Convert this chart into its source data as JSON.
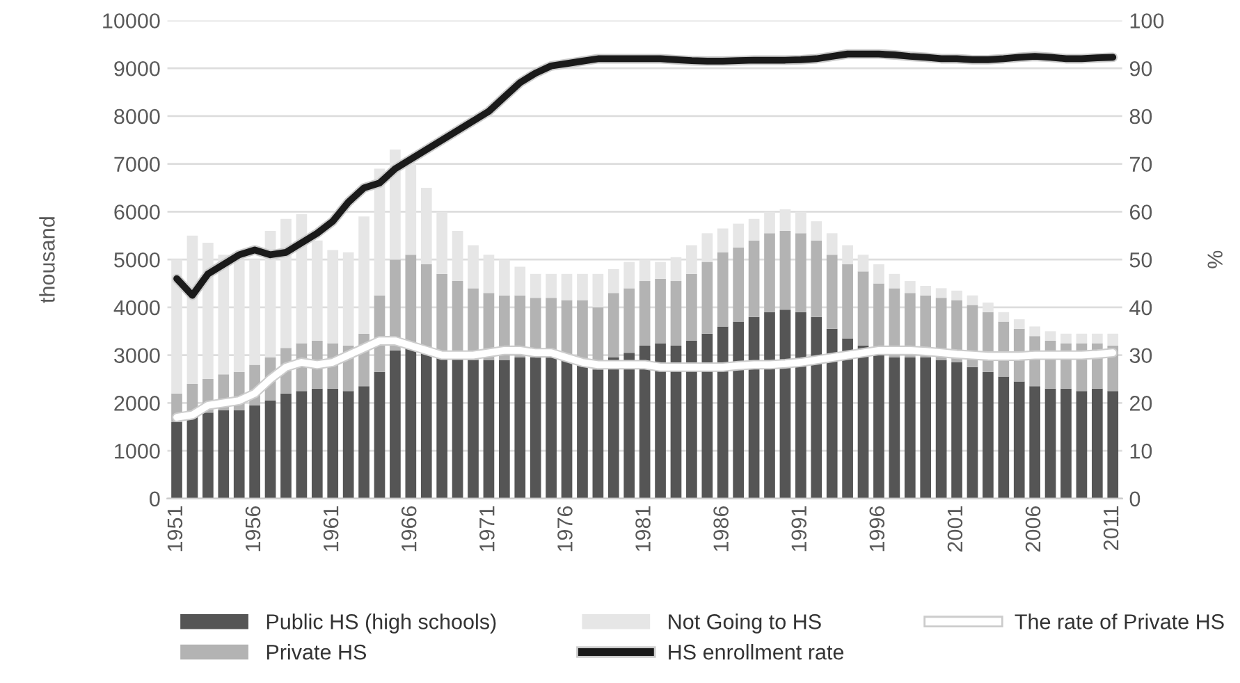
{
  "chart_data": {
    "type": "bar",
    "stacked": true,
    "ylabel": "thousand",
    "y2label": "%",
    "categories": [
      "1951",
      null,
      null,
      null,
      null,
      "1956",
      null,
      null,
      null,
      null,
      "1961",
      null,
      null,
      null,
      null,
      "1966",
      null,
      null,
      null,
      null,
      "1971",
      null,
      null,
      null,
      null,
      "1976",
      null,
      null,
      null,
      null,
      "1981",
      null,
      null,
      null,
      null,
      "1986",
      null,
      null,
      null,
      null,
      "1991",
      null,
      null,
      null,
      null,
      "1996",
      null,
      null,
      null,
      null,
      "2001",
      null,
      null,
      null,
      null,
      "2006",
      null,
      null,
      null,
      null,
      "2011"
    ],
    "ylim": [
      0,
      10000
    ],
    "yticks": [
      0,
      1000,
      2000,
      3000,
      4000,
      5000,
      6000,
      7000,
      8000,
      9000,
      10000
    ],
    "y2lim": [
      0,
      100
    ],
    "y2ticks": [
      0,
      10,
      20,
      30,
      40,
      50,
      60,
      70,
      80,
      90,
      100
    ],
    "grid": "y",
    "legend": "bottom",
    "series": [
      {
        "name": "Public HS (high schools)",
        "color": "#555555",
        "values": [
          1600,
          1750,
          1800,
          1850,
          1850,
          1950,
          2050,
          2200,
          2250,
          2300,
          2300,
          2250,
          2350,
          2650,
          3100,
          3150,
          3100,
          3000,
          2950,
          2900,
          2900,
          2900,
          2950,
          2950,
          2950,
          2900,
          2850,
          2700,
          2950,
          3050,
          3200,
          3250,
          3200,
          3300,
          3450,
          3600,
          3700,
          3800,
          3900,
          3950,
          3900,
          3800,
          3550,
          3350,
          3200,
          3000,
          2950,
          2950,
          2950,
          2900,
          2850,
          2750,
          2650,
          2550,
          2450,
          2350,
          2300,
          2300,
          2250,
          2300,
          2250
        ]
      },
      {
        "name": "Private HS",
        "color": "#b3b3b3",
        "values": [
          600,
          650,
          700,
          750,
          800,
          850,
          900,
          950,
          1000,
          1000,
          950,
          950,
          1100,
          1600,
          1900,
          1950,
          1800,
          1700,
          1600,
          1500,
          1400,
          1350,
          1300,
          1250,
          1250,
          1250,
          1300,
          1300,
          1350,
          1350,
          1350,
          1350,
          1350,
          1400,
          1500,
          1550,
          1550,
          1600,
          1650,
          1650,
          1650,
          1600,
          1550,
          1550,
          1550,
          1500,
          1450,
          1350,
          1300,
          1300,
          1300,
          1300,
          1250,
          1150,
          1100,
          1050,
          1000,
          950,
          1000,
          950,
          950
        ]
      },
      {
        "name": "Not Going to HS",
        "color": "#e6e6e6",
        "values": [
          2800,
          3100,
          2850,
          2500,
          2350,
          2200,
          2650,
          2700,
          2700,
          2100,
          1950,
          1950,
          2450,
          2650,
          2300,
          1900,
          1600,
          1300,
          1050,
          900,
          800,
          750,
          600,
          500,
          500,
          550,
          550,
          700,
          500,
          550,
          450,
          350,
          500,
          600,
          600,
          500,
          500,
          450,
          450,
          450,
          450,
          400,
          450,
          400,
          350,
          400,
          300,
          250,
          200,
          200,
          200,
          200,
          200,
          200,
          200,
          200,
          200,
          200,
          200,
          200,
          250
        ]
      },
      {
        "name": "HS enrollment rate",
        "type": "line",
        "axis": "y2",
        "color": "#1a1a1a",
        "values": [
          46,
          42.5,
          47,
          49,
          51,
          52,
          51,
          51.5,
          53.5,
          55.5,
          58,
          62,
          65,
          66,
          69,
          71,
          73,
          75,
          77,
          79,
          81,
          84,
          87,
          89,
          90.5,
          91,
          91.5,
          92,
          92,
          92,
          92,
          92,
          91.8,
          91.6,
          91.5,
          91.5,
          91.6,
          91.7,
          91.7,
          91.7,
          91.8,
          92,
          92.5,
          93,
          93,
          93,
          92.8,
          92.5,
          92.3,
          92,
          92,
          91.8,
          91.8,
          92,
          92.3,
          92.5,
          92.3,
          92,
          92,
          92.2,
          92.3
        ]
      },
      {
        "name": "The rate of Private HS",
        "type": "line",
        "axis": "y2",
        "color": "#ffffff",
        "values": [
          17,
          17.5,
          19.5,
          20,
          20.5,
          22,
          25,
          27.5,
          28.5,
          28,
          28.5,
          30,
          31.5,
          33,
          33,
          32,
          31,
          30,
          30,
          30,
          30.5,
          31,
          31,
          30.5,
          30.5,
          29.5,
          28.5,
          28,
          28,
          28,
          28,
          27.5,
          27.5,
          27.5,
          27.5,
          27.5,
          27.8,
          28,
          28,
          28.2,
          28.5,
          29,
          29.5,
          30,
          30.5,
          31,
          31,
          31,
          30.8,
          30.5,
          30.2,
          30,
          29.8,
          29.8,
          29.8,
          30,
          30,
          30,
          30,
          30.2,
          30.5
        ]
      }
    ]
  }
}
